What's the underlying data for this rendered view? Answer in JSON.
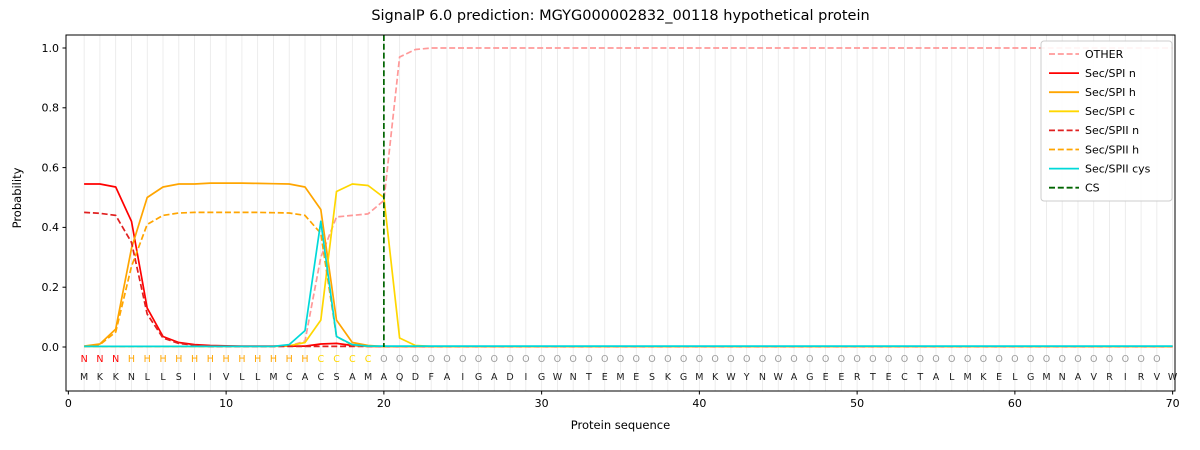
{
  "title": "SignalP 6.0 prediction: MGYG000002832_00118 hypothetical protein",
  "axes": {
    "xlabel": "Protein sequence",
    "ylabel": "Probability",
    "x_ticks": [
      0,
      10,
      20,
      30,
      40,
      50,
      60,
      70
    ],
    "y_ticks": [
      0,
      0.2,
      0.4,
      0.6,
      0.8,
      1
    ]
  },
  "chart_data": {
    "type": "line",
    "title": "SignalP 6.0 prediction: MGYG000002832_00118 hypothetical protein",
    "xlabel": "Protein sequence",
    "ylabel": "Probability",
    "xlim": [
      0,
      70
    ],
    "ylim": [
      0,
      1.05
    ],
    "grid": "vertical line per residue",
    "grid_color": "#e8e8e8",
    "legend_position": "upper right",
    "x_start": 1,
    "sequence": "MKKNLLSIIVLLMCACSAMAQDFAIGADIGWNTEMESKGMKWYNWAGEERTECTALMKELGMNAVRIRVW",
    "region_labels": "NNNHHHHHHHHHHHHCCCCOOOOOOOOOOOOOOOOOOOOOOOOOOOOOOOOOOOOOOOOOOOOOOOOOO",
    "region_colors": {
      "N": "#ff0000",
      "H": "#ffa500",
      "C": "#ffd700",
      "O": "#9c9c9c"
    },
    "cs": {
      "label": "CS",
      "position": 20,
      "color": "#006400",
      "dash": "dashed"
    },
    "series": [
      {
        "name": "OTHER",
        "color": "#ff9999",
        "dash": "dashed",
        "values": [
          0.001,
          0.001,
          0.001,
          0.001,
          0.001,
          0.001,
          0.001,
          0.001,
          0.001,
          0.001,
          0.001,
          0.001,
          0.001,
          0.003,
          0.02,
          0.3,
          0.435,
          0.44,
          0.445,
          0.49,
          0.97,
          0.995,
          1.0,
          1.0,
          1.0,
          1.0,
          1.0,
          1.0,
          1.0,
          1.0,
          1.0,
          1.0,
          1.0,
          1.0,
          1.0,
          1.0,
          1.0,
          1.0,
          1.0,
          1.0,
          1.0,
          1.0,
          1.0,
          1.0,
          1.0,
          1.0,
          1.0,
          1.0,
          1.0,
          1.0,
          1.0,
          1.0,
          1.0,
          1.0,
          1.0,
          1.0,
          1.0,
          1.0,
          1.0,
          1.0,
          1.0,
          1.0,
          1.0,
          1.0,
          1.0,
          1.0,
          1.0,
          1.0,
          1.0,
          1.0
        ]
      },
      {
        "name": "Sec/SPI n",
        "color": "#ff0000",
        "dash": "solid",
        "values": [
          0.545,
          0.545,
          0.535,
          0.42,
          0.13,
          0.035,
          0.015,
          0.008,
          0.005,
          0.004,
          0.003,
          0.003,
          0.003,
          0.003,
          0.003,
          0.01,
          0.012,
          0.005,
          0.002,
          0.002,
          0.002,
          0.002,
          0.002,
          0.002,
          0.002,
          0.002,
          0.002,
          0.002,
          0.002,
          0.002,
          0.002,
          0.002,
          0.002,
          0.002,
          0.002,
          0.002,
          0.002,
          0.002,
          0.002,
          0.002,
          0.002,
          0.002,
          0.002,
          0.002,
          0.002,
          0.002,
          0.002,
          0.002,
          0.002,
          0.002,
          0.002,
          0.002,
          0.002,
          0.002,
          0.002,
          0.002,
          0.002,
          0.002,
          0.002,
          0.002,
          0.002,
          0.002,
          0.002,
          0.002,
          0.002,
          0.002,
          0.002,
          0.002,
          0.002,
          0.002
        ]
      },
      {
        "name": "Sec/SPI h",
        "color": "#ffa500",
        "dash": "solid",
        "values": [
          0.003,
          0.01,
          0.06,
          0.33,
          0.5,
          0.535,
          0.545,
          0.545,
          0.548,
          0.548,
          0.548,
          0.547,
          0.546,
          0.545,
          0.535,
          0.46,
          0.09,
          0.015,
          0.005,
          0.002,
          0.002,
          0.002,
          0.002,
          0.002,
          0.002,
          0.002,
          0.002,
          0.002,
          0.002,
          0.002,
          0.002,
          0.002,
          0.002,
          0.002,
          0.002,
          0.002,
          0.002,
          0.002,
          0.002,
          0.002,
          0.002,
          0.002,
          0.002,
          0.002,
          0.002,
          0.002,
          0.002,
          0.002,
          0.002,
          0.002,
          0.002,
          0.002,
          0.002,
          0.002,
          0.002,
          0.002,
          0.002,
          0.002,
          0.002,
          0.002,
          0.002,
          0.002,
          0.002,
          0.002,
          0.002,
          0.002,
          0.002,
          0.002,
          0.002,
          0.002
        ]
      },
      {
        "name": "Sec/SPI c",
        "color": "#ffd700",
        "dash": "solid",
        "values": [
          0.002,
          0.002,
          0.002,
          0.002,
          0.002,
          0.002,
          0.002,
          0.002,
          0.002,
          0.002,
          0.002,
          0.002,
          0.002,
          0.004,
          0.015,
          0.09,
          0.52,
          0.545,
          0.54,
          0.5,
          0.03,
          0.005,
          0.002,
          0.002,
          0.002,
          0.002,
          0.002,
          0.002,
          0.002,
          0.002,
          0.002,
          0.002,
          0.002,
          0.002,
          0.002,
          0.002,
          0.002,
          0.002,
          0.002,
          0.002,
          0.002,
          0.002,
          0.002,
          0.002,
          0.002,
          0.002,
          0.002,
          0.002,
          0.002,
          0.002,
          0.002,
          0.002,
          0.002,
          0.002,
          0.002,
          0.002,
          0.002,
          0.002,
          0.002,
          0.002,
          0.002,
          0.002,
          0.002,
          0.002,
          0.002,
          0.002,
          0.002,
          0.002,
          0.002,
          0.002
        ]
      },
      {
        "name": "Sec/SPII n",
        "color": "#e02020",
        "dash": "dashed",
        "values": [
          0.45,
          0.447,
          0.44,
          0.35,
          0.11,
          0.03,
          0.012,
          0.006,
          0.002,
          0.002,
          0.002,
          0.002,
          0.002,
          0.002,
          0.002,
          0.002,
          0.002,
          0.002,
          0.002,
          0.002,
          0.002,
          0.002,
          0.002,
          0.002,
          0.002,
          0.002,
          0.002,
          0.002,
          0.002,
          0.002,
          0.002,
          0.002,
          0.002,
          0.002,
          0.002,
          0.002,
          0.002,
          0.002,
          0.002,
          0.002,
          0.002,
          0.002,
          0.002,
          0.002,
          0.002,
          0.002,
          0.002,
          0.002,
          0.002,
          0.002,
          0.002,
          0.002,
          0.002,
          0.002,
          0.002,
          0.002,
          0.002,
          0.002,
          0.002,
          0.002,
          0.002,
          0.002,
          0.002,
          0.002,
          0.002,
          0.002,
          0.002,
          0.002,
          0.002,
          0.002
        ]
      },
      {
        "name": "Sec/SPII h",
        "color": "#ffa500",
        "dash": "dashed",
        "values": [
          0.002,
          0.008,
          0.05,
          0.27,
          0.41,
          0.44,
          0.448,
          0.45,
          0.45,
          0.45,
          0.45,
          0.45,
          0.449,
          0.448,
          0.44,
          0.38,
          0.035,
          0.006,
          0.002,
          0.002,
          0.002,
          0.002,
          0.002,
          0.002,
          0.002,
          0.002,
          0.002,
          0.002,
          0.002,
          0.002,
          0.002,
          0.002,
          0.002,
          0.002,
          0.002,
          0.002,
          0.002,
          0.002,
          0.002,
          0.002,
          0.002,
          0.002,
          0.002,
          0.002,
          0.002,
          0.002,
          0.002,
          0.002,
          0.002,
          0.002,
          0.002,
          0.002,
          0.002,
          0.002,
          0.002,
          0.002,
          0.002,
          0.002,
          0.002,
          0.002,
          0.002,
          0.002,
          0.002,
          0.002,
          0.002,
          0.002,
          0.002,
          0.002,
          0.002,
          0.002
        ]
      },
      {
        "name": "Sec/SPII cys",
        "color": "#00d9d9",
        "dash": "solid",
        "values": [
          0.002,
          0.002,
          0.002,
          0.002,
          0.002,
          0.002,
          0.002,
          0.002,
          0.002,
          0.002,
          0.002,
          0.002,
          0.002,
          0.008,
          0.055,
          0.42,
          0.035,
          0.008,
          0.003,
          0.003,
          0.003,
          0.003,
          0.003,
          0.003,
          0.003,
          0.003,
          0.003,
          0.003,
          0.003,
          0.003,
          0.003,
          0.003,
          0.003,
          0.003,
          0.003,
          0.003,
          0.003,
          0.003,
          0.003,
          0.003,
          0.003,
          0.003,
          0.003,
          0.003,
          0.003,
          0.003,
          0.003,
          0.003,
          0.003,
          0.003,
          0.003,
          0.003,
          0.003,
          0.003,
          0.003,
          0.003,
          0.003,
          0.003,
          0.003,
          0.003,
          0.003,
          0.003,
          0.003,
          0.003,
          0.003,
          0.003,
          0.003,
          0.003,
          0.003,
          0.003
        ]
      }
    ]
  }
}
